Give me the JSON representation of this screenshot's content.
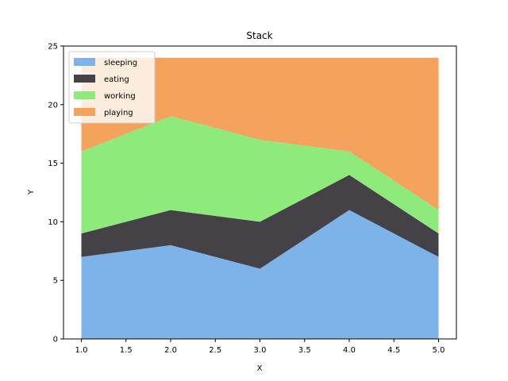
{
  "chart_data": {
    "type": "area",
    "stacked": true,
    "title": "Stack",
    "xlabel": "X",
    "ylabel": "Y",
    "x": [
      1,
      2,
      3,
      4,
      5
    ],
    "xlim": [
      0.8,
      5.2
    ],
    "ylim": [
      0,
      25
    ],
    "xticks": [
      "1.0",
      "1.5",
      "2.0",
      "2.5",
      "3.0",
      "3.5",
      "4.0",
      "4.5",
      "5.0"
    ],
    "yticks": [
      "0",
      "5",
      "10",
      "15",
      "20",
      "25"
    ],
    "grid": false,
    "legend_position": "top-left",
    "series": [
      {
        "name": "sleeping",
        "values": [
          7,
          8,
          6,
          11,
          7
        ],
        "color": "#7eb3ea"
      },
      {
        "name": "eating",
        "values": [
          2,
          3,
          4,
          3,
          2
        ],
        "color": "#444247"
      },
      {
        "name": "working",
        "values": [
          7,
          8,
          7,
          2,
          2
        ],
        "color": "#8eea7a"
      },
      {
        "name": "playing",
        "values": [
          8,
          5,
          7,
          8,
          13
        ],
        "color": "#f5a35c"
      }
    ]
  }
}
